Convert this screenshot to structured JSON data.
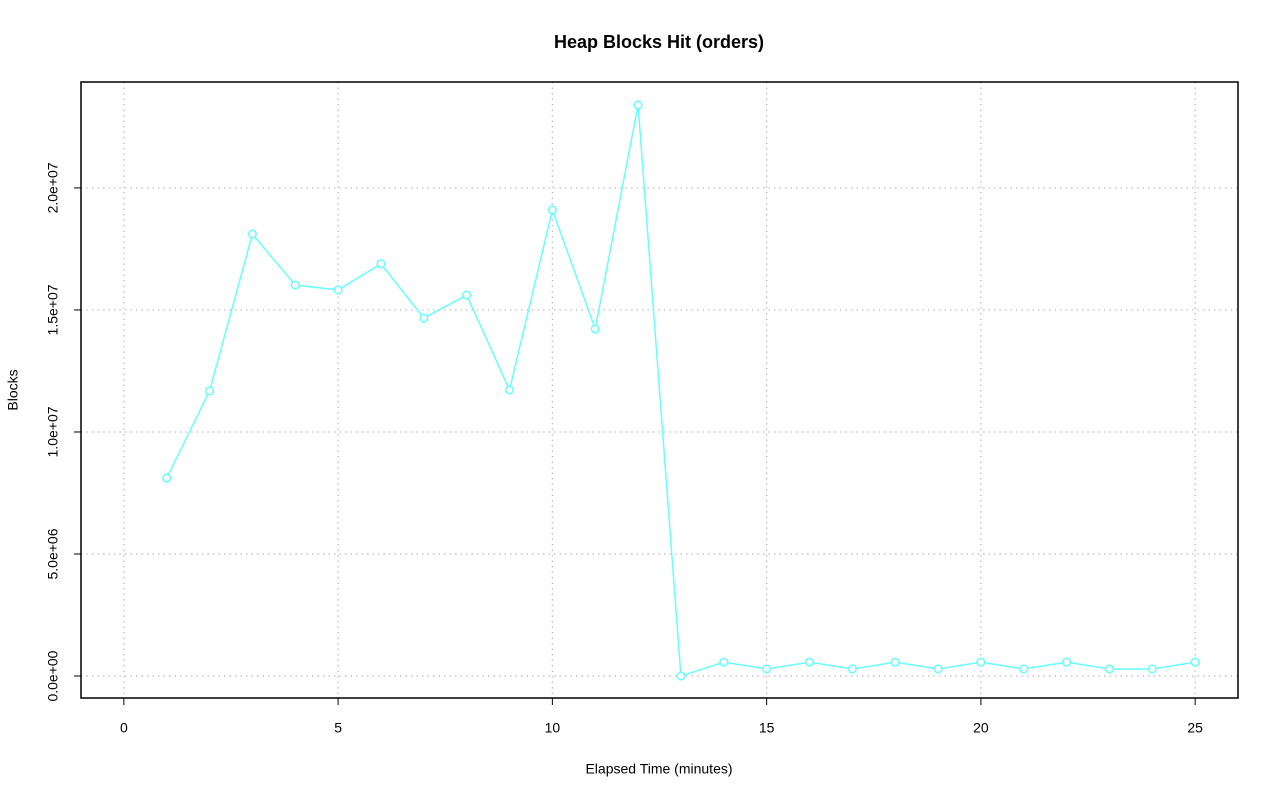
{
  "chart_data": {
    "type": "line",
    "title": "Heap Blocks Hit (orders)",
    "x_label": "Elapsed Time (minutes)",
    "y_label": "Blocks",
    "x": [
      1,
      2,
      3,
      4,
      5,
      6,
      7,
      8,
      9,
      10,
      11,
      12,
      13,
      14,
      15,
      16,
      17,
      18,
      19,
      20,
      21,
      22,
      23,
      24,
      25
    ],
    "series": [
      {
        "name": "orders",
        "color": "#66ffff",
        "values": [
          8110000,
          11680000,
          18110000,
          16020000,
          15820000,
          16890000,
          14670000,
          15610000,
          11720000,
          19100000,
          14220000,
          23400000,
          0,
          570000,
          290000,
          570000,
          290000,
          570000,
          290000,
          570000,
          290000,
          570000,
          290000,
          290000,
          570000
        ]
      }
    ],
    "xlim": [
      -1,
      26
    ],
    "xticks": [
      0,
      5,
      10,
      15,
      20,
      25
    ],
    "ylim": [
      -900000,
      24340000
    ],
    "yticks": [
      {
        "value": 0,
        "label": "0.0e+00"
      },
      {
        "value": 5000000,
        "label": "5.0e+06"
      },
      {
        "value": 10000000,
        "label": "1.0e+07"
      },
      {
        "value": 15000000,
        "label": "1.5e+07"
      },
      {
        "value": 20000000,
        "label": "2.0e+07"
      }
    ],
    "grid": true
  }
}
